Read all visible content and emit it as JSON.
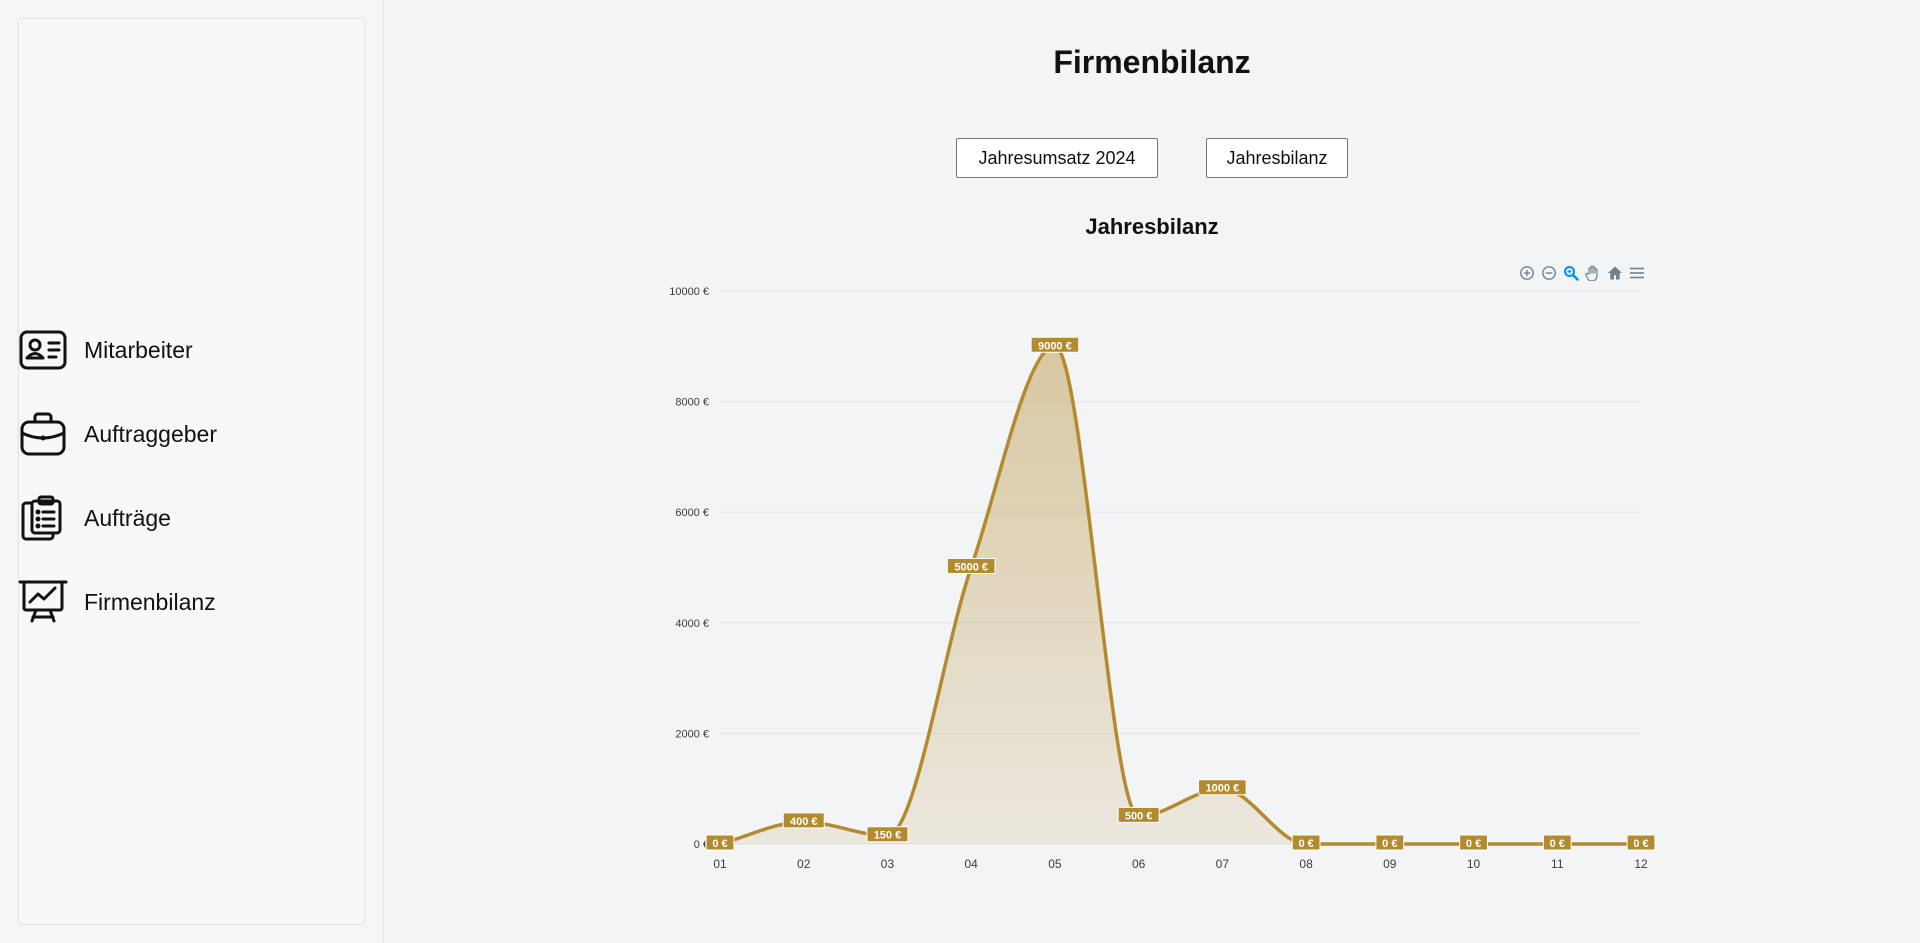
{
  "sidebar": {
    "items": [
      {
        "label": "Mitarbeiter",
        "icon": "id-card-icon"
      },
      {
        "label": "Auftraggeber",
        "icon": "briefcase-icon"
      },
      {
        "label": "Aufträge",
        "icon": "clipboard-list-icon"
      },
      {
        "label": "Firmenbilanz",
        "icon": "presentation-chart-icon"
      }
    ]
  },
  "page": {
    "title": "Firmenbilanz"
  },
  "tabs": {
    "umsatz_label": "Jahresumsatz 2024",
    "bilanz_label": "Jahresbilanz"
  },
  "toolbar": {
    "icons": [
      "zoom-in-icon",
      "zoom-out-icon",
      "selection-zoom-icon",
      "pan-icon",
      "home-reset-icon",
      "menu-icon"
    ],
    "active_color": "#008ffb",
    "inactive_color": "#6e8192"
  },
  "colors": {
    "series": "#b38a2e",
    "label_text": "#ffffff"
  },
  "chart_data": {
    "type": "area",
    "title": "Jahresbilanz",
    "categories": [
      "01",
      "02",
      "03",
      "04",
      "05",
      "06",
      "07",
      "08",
      "09",
      "10",
      "11",
      "12"
    ],
    "series": [
      {
        "values": [
          0,
          400,
          150,
          5000,
          9000,
          500,
          1000,
          0,
          0,
          0,
          0,
          0
        ]
      }
    ],
    "data_labels": [
      "0 €",
      "400 €",
      "150 €",
      "5000 €",
      "9000 €",
      "500 €",
      "1000 €",
      "0 €",
      "0 €",
      "0 €",
      "0 €",
      "0 €"
    ],
    "y_ticks": [
      "0 €",
      "2000 €",
      "4000 €",
      "6000 €",
      "8000 €",
      "10000 €"
    ],
    "ylim": [
      0,
      10000
    ],
    "grid": true,
    "smooth": true
  }
}
